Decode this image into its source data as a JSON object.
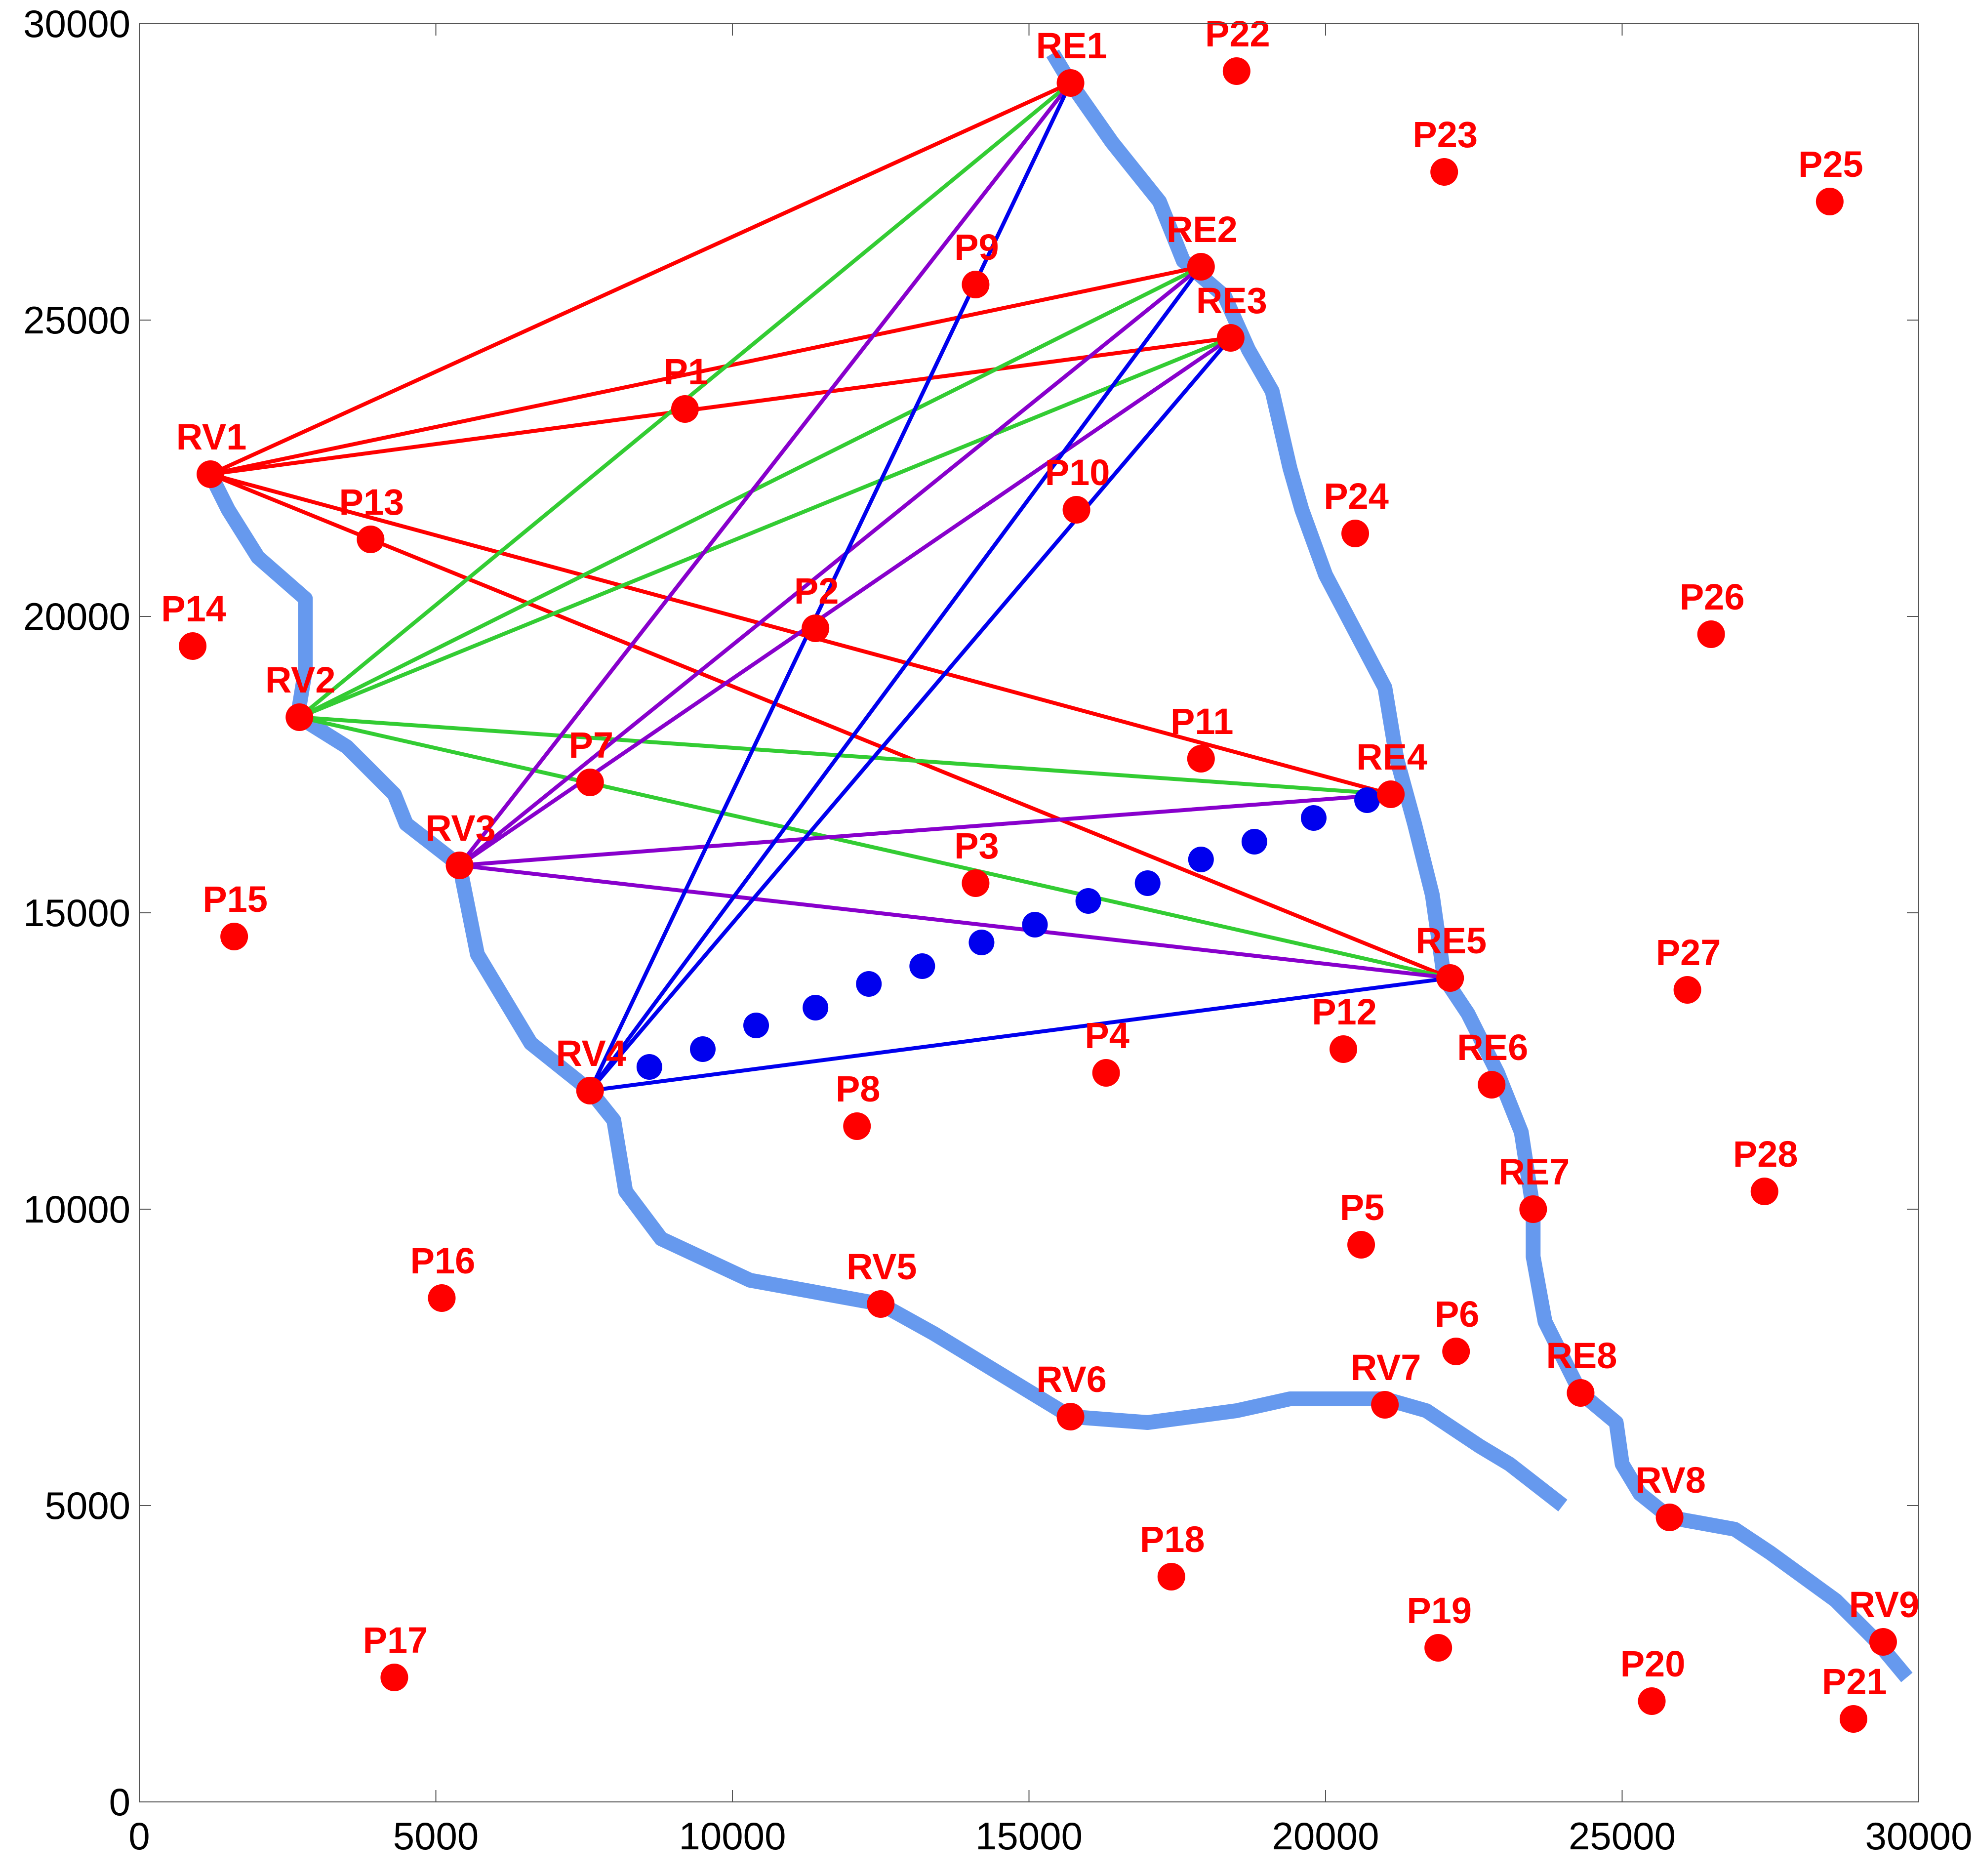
{
  "chart_data": {
    "type": "scatter",
    "title": "",
    "xlabel": "",
    "ylabel": "",
    "xlim": [
      0,
      30000
    ],
    "ylim": [
      0,
      30000
    ],
    "xticks": [
      "0",
      "5000",
      "10000",
      "15000",
      "20000",
      "25000",
      "30000"
    ],
    "yticks": [
      "0",
      "5000",
      "10000",
      "15000",
      "20000",
      "25000",
      "30000"
    ],
    "grid": false,
    "legend": "none",
    "colors": {
      "points": "#ff0000",
      "labels": "#ff0000",
      "boundary": "#6699ee",
      "dots": "#0000ee",
      "red": "#ff0000",
      "green": "#33cc33",
      "purple": "#8800cc",
      "blue": "#0000ee"
    },
    "boundary": [
      [
        15400,
        29500
      ],
      [
        15700,
        29000
      ],
      [
        16400,
        28000
      ],
      [
        17200,
        27000
      ],
      [
        17600,
        26000
      ],
      [
        18300,
        25400
      ],
      [
        18700,
        24500
      ],
      [
        19100,
        23800
      ],
      [
        19400,
        22500
      ],
      [
        19600,
        21800
      ],
      [
        20000,
        20700
      ],
      [
        21000,
        18800
      ],
      [
        21200,
        17600
      ],
      [
        21500,
        16500
      ],
      [
        21800,
        15300
      ],
      [
        22000,
        13900
      ],
      [
        22400,
        13300
      ],
      [
        22900,
        12300
      ],
      [
        23300,
        11300
      ],
      [
        23500,
        10000
      ],
      [
        23500,
        9200
      ],
      [
        23700,
        8100
      ],
      [
        24300,
        6900
      ],
      [
        24900,
        6400
      ],
      [
        25000,
        5700
      ],
      [
        25300,
        5200
      ],
      [
        25800,
        4800
      ],
      [
        26900,
        4600
      ],
      [
        27500,
        4200
      ],
      [
        28600,
        3400
      ],
      [
        29300,
        2700
      ],
      [
        29800,
        2100
      ]
    ],
    "boundary2": [
      [
        1200,
        22400
      ],
      [
        1500,
        21800
      ],
      [
        2000,
        21000
      ],
      [
        2800,
        20300
      ],
      [
        2800,
        19100
      ],
      [
        2700,
        18500
      ],
      [
        2700,
        18300
      ],
      [
        3500,
        17800
      ],
      [
        4300,
        17000
      ],
      [
        4500,
        16500
      ],
      [
        5400,
        15800
      ],
      [
        5700,
        14300
      ],
      [
        6000,
        13800
      ],
      [
        6600,
        12800
      ],
      [
        7600,
        12000
      ],
      [
        8000,
        11500
      ],
      [
        8200,
        10300
      ],
      [
        8800,
        9500
      ],
      [
        10300,
        8800
      ],
      [
        12500,
        8400
      ],
      [
        13400,
        7900
      ],
      [
        15700,
        6500
      ],
      [
        17000,
        6400
      ],
      [
        18500,
        6600
      ],
      [
        19400,
        6800
      ],
      [
        21000,
        6800
      ],
      [
        21700,
        6600
      ],
      [
        22600,
        6000
      ],
      [
        23100,
        5700
      ],
      [
        24000,
        5000
      ]
    ],
    "points": [
      {
        "label": "RE1",
        "x": 15700,
        "y": 29000
      },
      {
        "label": "P22",
        "x": 18500,
        "y": 29200
      },
      {
        "label": "P23",
        "x": 22000,
        "y": 27500
      },
      {
        "label": "P25",
        "x": 28500,
        "y": 27000
      },
      {
        "label": "P9",
        "x": 14100,
        "y": 25600
      },
      {
        "label": "RE2",
        "x": 17900,
        "y": 25900
      },
      {
        "label": "RE3",
        "x": 18400,
        "y": 24700
      },
      {
        "label": "P1",
        "x": 9200,
        "y": 23500
      },
      {
        "label": "RV1",
        "x": 1200,
        "y": 22400
      },
      {
        "label": "P10",
        "x": 15800,
        "y": 21800
      },
      {
        "label": "P13",
        "x": 3900,
        "y": 21300
      },
      {
        "label": "P24",
        "x": 20500,
        "y": 21400
      },
      {
        "label": "P2",
        "x": 11400,
        "y": 19800
      },
      {
        "label": "P14",
        "x": 900,
        "y": 19500
      },
      {
        "label": "P26",
        "x": 26500,
        "y": 19700
      },
      {
        "label": "RV2",
        "x": 2700,
        "y": 18300
      },
      {
        "label": "P11",
        "x": 17900,
        "y": 17600
      },
      {
        "label": "RE4",
        "x": 21100,
        "y": 17000
      },
      {
        "label": "P7",
        "x": 7600,
        "y": 17200
      },
      {
        "label": "RV3",
        "x": 5400,
        "y": 15800
      },
      {
        "label": "P3",
        "x": 14100,
        "y": 15500
      },
      {
        "label": "P15",
        "x": 1600,
        "y": 14600
      },
      {
        "label": "RE5",
        "x": 22100,
        "y": 13900
      },
      {
        "label": "P27",
        "x": 26100,
        "y": 13700
      },
      {
        "label": "P12",
        "x": 20300,
        "y": 12700
      },
      {
        "label": "P4",
        "x": 16300,
        "y": 12300
      },
      {
        "label": "RV4",
        "x": 7600,
        "y": 12000
      },
      {
        "label": "RE6",
        "x": 22800,
        "y": 12100
      },
      {
        "label": "P8",
        "x": 12100,
        "y": 11400
      },
      {
        "label": "P28",
        "x": 27400,
        "y": 10300
      },
      {
        "label": "RE7",
        "x": 23500,
        "y": 10000
      },
      {
        "label": "P5",
        "x": 20600,
        "y": 9400
      },
      {
        "label": "P16",
        "x": 5100,
        "y": 8500
      },
      {
        "label": "RV5",
        "x": 12500,
        "y": 8400
      },
      {
        "label": "P6",
        "x": 22200,
        "y": 7600
      },
      {
        "label": "RE8",
        "x": 24300,
        "y": 6900
      },
      {
        "label": "RV7",
        "x": 21000,
        "y": 6700
      },
      {
        "label": "RV6",
        "x": 15700,
        "y": 6500
      },
      {
        "label": "RV8",
        "x": 25800,
        "y": 4800
      },
      {
        "label": "P18",
        "x": 17400,
        "y": 3800
      },
      {
        "label": "RV9",
        "x": 29400,
        "y": 2700
      },
      {
        "label": "P19",
        "x": 21900,
        "y": 2600
      },
      {
        "label": "P17",
        "x": 4300,
        "y": 2100
      },
      {
        "label": "P20",
        "x": 25500,
        "y": 1700
      },
      {
        "label": "P21",
        "x": 28900,
        "y": 1400
      }
    ],
    "dotted_series": [
      [
        8600,
        12400
      ],
      [
        9500,
        12700
      ],
      [
        10400,
        13100
      ],
      [
        11400,
        13400
      ],
      [
        12300,
        13800
      ],
      [
        13200,
        14100
      ],
      [
        14200,
        14500
      ],
      [
        15100,
        14800
      ],
      [
        16000,
        15200
      ],
      [
        17000,
        15500
      ],
      [
        17900,
        15900
      ],
      [
        18800,
        16200
      ],
      [
        19800,
        16600
      ],
      [
        20700,
        16900
      ]
    ],
    "connections": {
      "red": [
        [
          "RV1",
          "RE1"
        ],
        [
          "RV1",
          "RE2"
        ],
        [
          "RV1",
          "RE3"
        ],
        [
          "RV1",
          "RE4"
        ],
        [
          "RV1",
          "RE5"
        ]
      ],
      "green": [
        [
          "RV2",
          "RE1"
        ],
        [
          "RV2",
          "RE2"
        ],
        [
          "RV2",
          "RE3"
        ],
        [
          "RV2",
          "RE4"
        ],
        [
          "RV2",
          "RE5"
        ]
      ],
      "purple": [
        [
          "RV3",
          "RE1"
        ],
        [
          "RV3",
          "RE2"
        ],
        [
          "RV3",
          "RE3"
        ],
        [
          "RV3",
          "RE4"
        ],
        [
          "RV3",
          "RE5"
        ]
      ],
      "blue": [
        [
          "RV4",
          "RE1"
        ],
        [
          "RV4",
          "RE2"
        ],
        [
          "RV4",
          "RE3"
        ],
        [
          "RV4",
          "RE5"
        ]
      ]
    }
  }
}
